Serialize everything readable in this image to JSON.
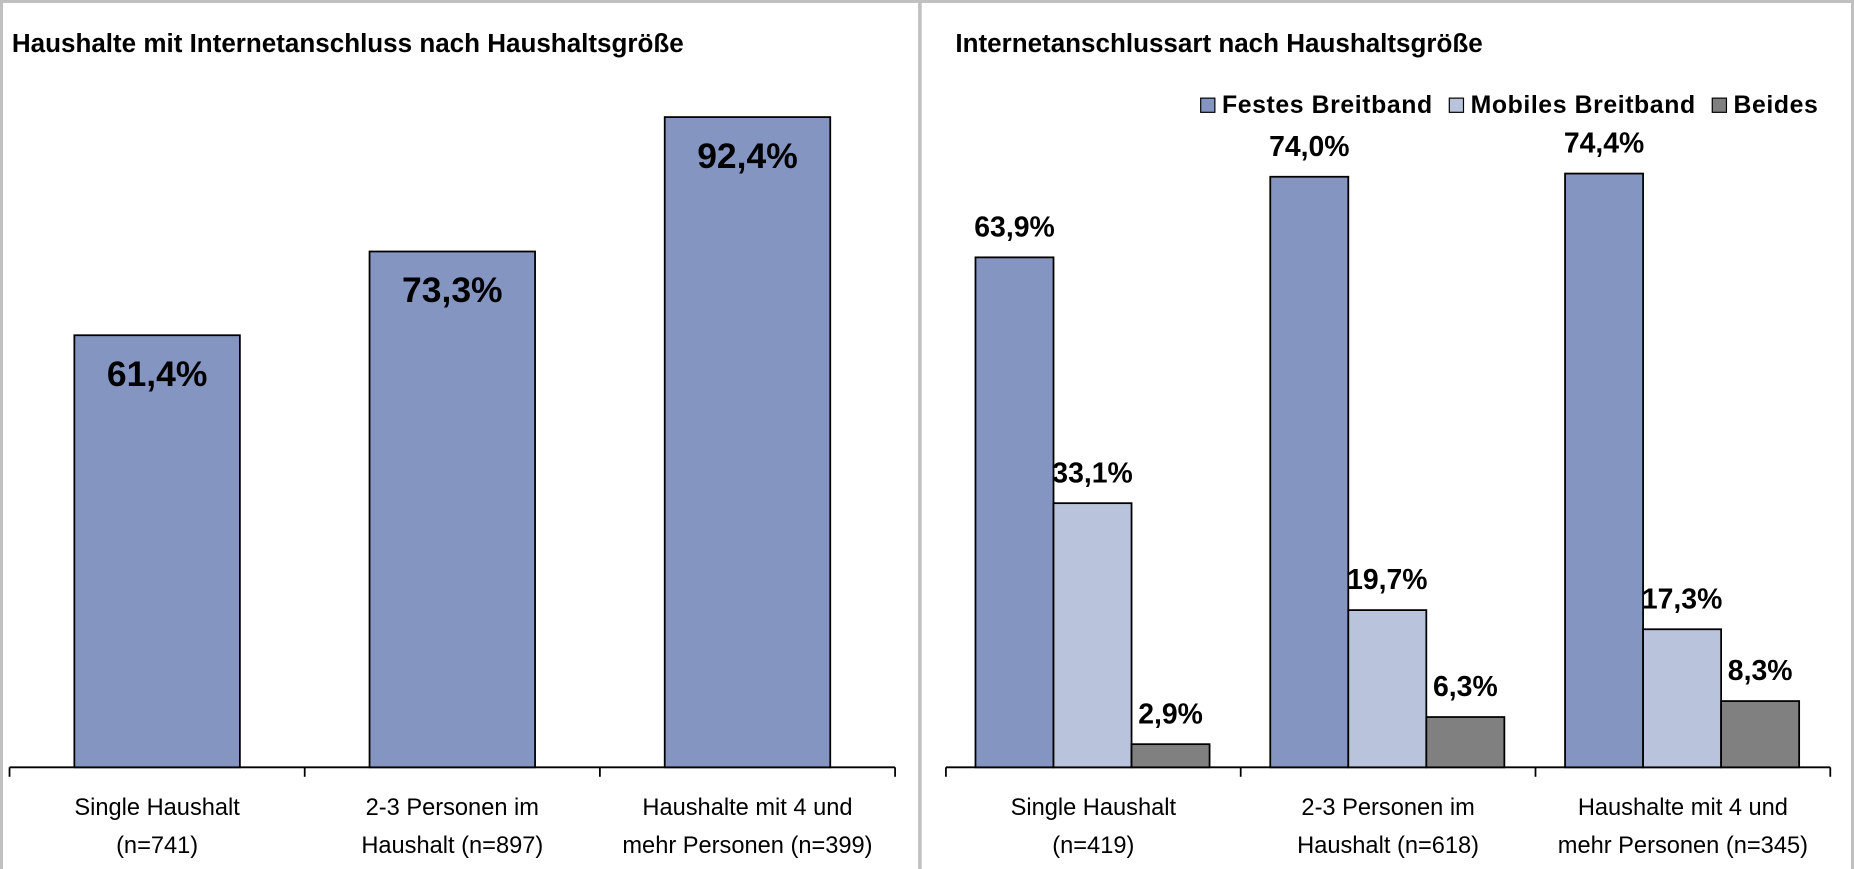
{
  "chart_data": [
    {
      "type": "bar",
      "title": "Haushalte mit Internetanschluss nach Haushaltsgröße",
      "categories": [
        [
          "Single Haushalt",
          "(n=741)"
        ],
        [
          "2-3 Personen im",
          "Haushalt (n=897)"
        ],
        [
          "Haushalte mit 4 und",
          "mehr Personen (n=399)"
        ]
      ],
      "values": [
        61.4,
        73.3,
        92.4
      ],
      "value_labels": [
        "61,4%",
        "73,3%",
        "92,4%"
      ],
      "color": "#8495c2"
    },
    {
      "type": "grouped_bar",
      "title": "Internetanschlussart nach Haushaltsgröße",
      "categories": [
        [
          "Single Haushalt",
          "(n=419)"
        ],
        [
          "2-3 Personen im",
          "Haushalt (n=618)"
        ],
        [
          "Haushalte mit 4 und",
          "mehr Personen (n=345)"
        ]
      ],
      "legend": "top-right",
      "series": [
        {
          "name": "Festes Breitband",
          "color": "#8495c2",
          "values": [
            63.9,
            74.0,
            74.4
          ],
          "value_labels": [
            "63,9%",
            "74,0%",
            "74,4%"
          ]
        },
        {
          "name": "Mobiles Breitband",
          "color": "#b9c3dc",
          "values": [
            33.1,
            19.7,
            17.3
          ],
          "value_labels": [
            "33,1%",
            "19,7%",
            "17,3%"
          ]
        },
        {
          "name": "Beides",
          "color": "#808080",
          "values": [
            2.9,
            6.3,
            8.3
          ],
          "value_labels": [
            "2,9%",
            "6,3%",
            "8,3%"
          ]
        }
      ]
    }
  ]
}
